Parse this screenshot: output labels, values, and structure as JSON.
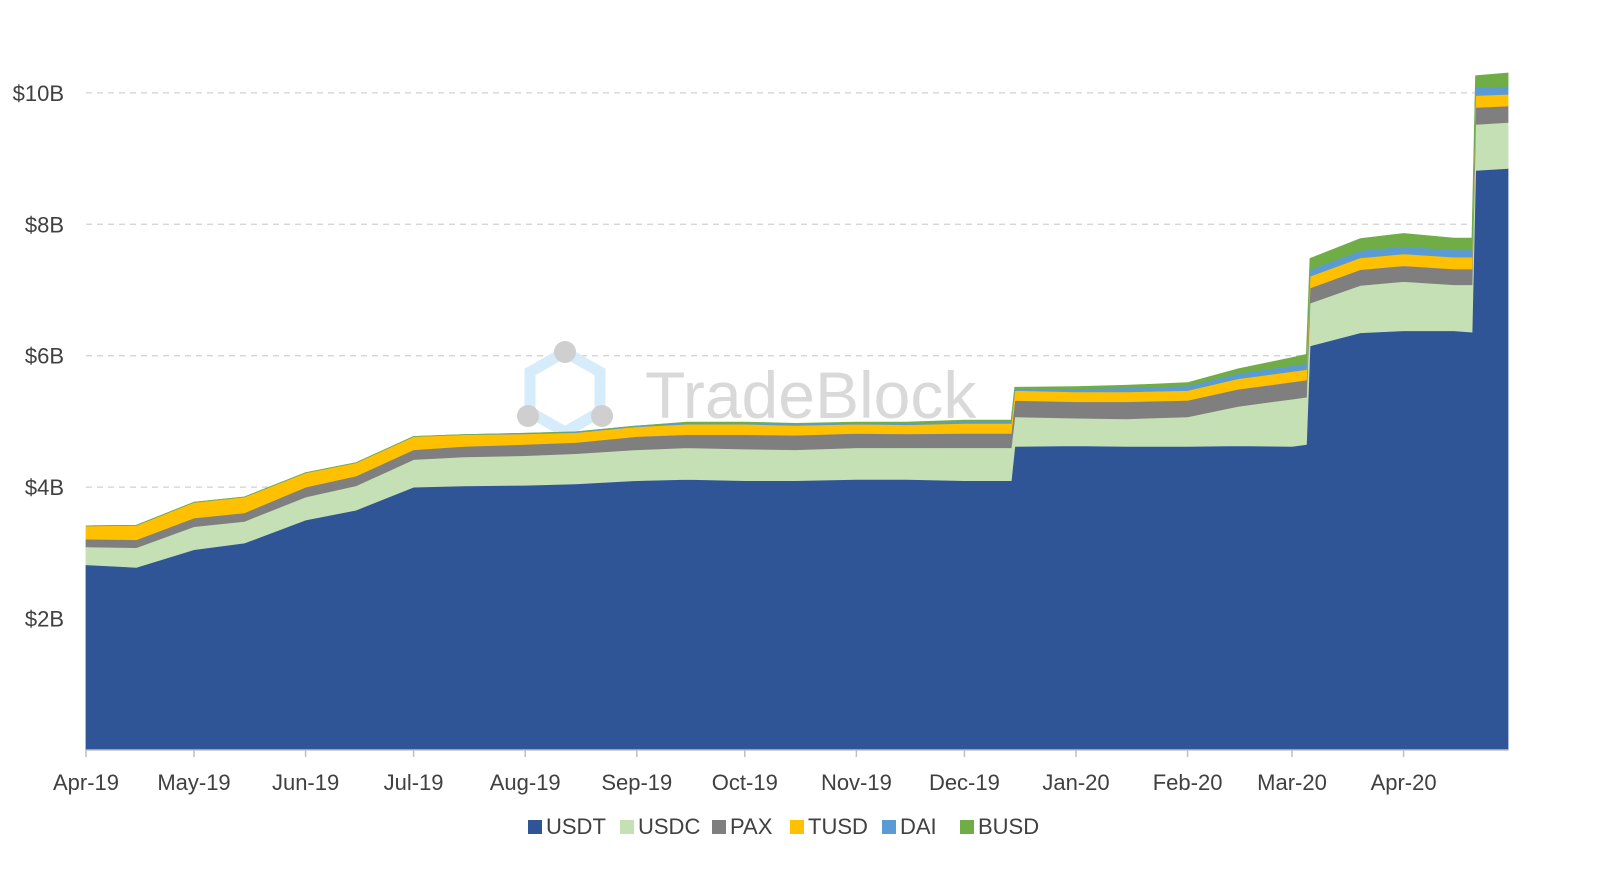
{
  "chart_data": {
    "type": "area",
    "stacked": true,
    "title": "",
    "xlabel": "",
    "ylabel": "",
    "y_unit": "USD billions",
    "ylim": [
      0,
      10.5
    ],
    "y_ticks": [
      {
        "value": 2,
        "label": "$2B"
      },
      {
        "value": 4,
        "label": "$4B"
      },
      {
        "value": 6,
        "label": "$6B"
      },
      {
        "value": 8,
        "label": "$8B"
      },
      {
        "value": 10,
        "label": "$10B"
      }
    ],
    "x_tick_labels": [
      "Apr-19",
      "May-19",
      "Jun-19",
      "Jul-19",
      "Aug-19",
      "Sep-19",
      "Oct-19",
      "Nov-19",
      "Dec-19",
      "Jan-20",
      "Feb-20",
      "Mar-20",
      "Apr-20"
    ],
    "x_start": "2019-04-01",
    "x_end": "2020-04-30",
    "grid": {
      "horizontal": true,
      "style": "dashed"
    },
    "legend": {
      "position": "bottom"
    },
    "watermark": "TradeBlock",
    "x": [
      "2019-04-01",
      "2019-04-15",
      "2019-05-01",
      "2019-05-15",
      "2019-06-01",
      "2019-06-15",
      "2019-07-01",
      "2019-07-15",
      "2019-08-01",
      "2019-08-15",
      "2019-09-01",
      "2019-09-15",
      "2019-10-01",
      "2019-10-15",
      "2019-11-01",
      "2019-11-15",
      "2019-12-01",
      "2019-12-14",
      "2019-12-15",
      "2020-01-01",
      "2020-01-15",
      "2020-02-01",
      "2020-02-15",
      "2020-03-01",
      "2020-03-05",
      "2020-03-06",
      "2020-03-20",
      "2020-04-01",
      "2020-04-15",
      "2020-04-20",
      "2020-04-21",
      "2020-04-30"
    ],
    "series": [
      {
        "name": "USDT",
        "color": "#2f5597",
        "values": [
          2.82,
          2.78,
          3.05,
          3.15,
          3.5,
          3.65,
          4.0,
          4.02,
          4.03,
          4.05,
          4.1,
          4.12,
          4.1,
          4.1,
          4.12,
          4.12,
          4.1,
          4.1,
          4.62,
          4.63,
          4.62,
          4.62,
          4.63,
          4.62,
          4.65,
          6.15,
          6.35,
          6.38,
          6.38,
          6.36,
          8.82,
          8.85
        ]
      },
      {
        "name": "USDC",
        "color": "#c5e0b4",
        "values": [
          0.27,
          0.3,
          0.35,
          0.33,
          0.35,
          0.37,
          0.42,
          0.44,
          0.45,
          0.46,
          0.47,
          0.48,
          0.48,
          0.47,
          0.48,
          0.48,
          0.5,
          0.5,
          0.45,
          0.42,
          0.42,
          0.45,
          0.6,
          0.72,
          0.72,
          0.65,
          0.72,
          0.75,
          0.7,
          0.72,
          0.7,
          0.7
        ]
      },
      {
        "name": "PAX",
        "color": "#7f7f7f",
        "values": [
          0.12,
          0.12,
          0.13,
          0.13,
          0.15,
          0.15,
          0.15,
          0.16,
          0.17,
          0.17,
          0.2,
          0.2,
          0.22,
          0.22,
          0.22,
          0.21,
          0.22,
          0.22,
          0.25,
          0.25,
          0.26,
          0.25,
          0.26,
          0.26,
          0.26,
          0.23,
          0.24,
          0.24,
          0.24,
          0.24,
          0.26,
          0.25
        ]
      },
      {
        "name": "TUSD",
        "color": "#ffc000",
        "values": [
          0.2,
          0.22,
          0.24,
          0.24,
          0.22,
          0.2,
          0.2,
          0.18,
          0.16,
          0.15,
          0.15,
          0.16,
          0.16,
          0.15,
          0.14,
          0.14,
          0.15,
          0.15,
          0.15,
          0.15,
          0.15,
          0.15,
          0.16,
          0.16,
          0.16,
          0.18,
          0.18,
          0.18,
          0.18,
          0.18,
          0.18,
          0.18
        ]
      },
      {
        "name": "DAI",
        "color": "#5b9bd5",
        "values": [
          0.0,
          0.0,
          0.0,
          0.0,
          0.0,
          0.0,
          0.0,
          0.0,
          0.01,
          0.01,
          0.01,
          0.02,
          0.02,
          0.02,
          0.02,
          0.02,
          0.03,
          0.03,
          0.03,
          0.05,
          0.06,
          0.07,
          0.08,
          0.09,
          0.09,
          0.1,
          0.11,
          0.11,
          0.11,
          0.11,
          0.12,
          0.12
        ]
      },
      {
        "name": "BUSD",
        "color": "#70ad47",
        "values": [
          0.0,
          0.0,
          0.0,
          0.0,
          0.0,
          0.0,
          0.0,
          0.0,
          0.0,
          0.0,
          0.0,
          0.01,
          0.01,
          0.01,
          0.01,
          0.02,
          0.02,
          0.02,
          0.02,
          0.03,
          0.04,
          0.05,
          0.07,
          0.12,
          0.14,
          0.17,
          0.18,
          0.2,
          0.18,
          0.18,
          0.18,
          0.2
        ]
      }
    ]
  }
}
